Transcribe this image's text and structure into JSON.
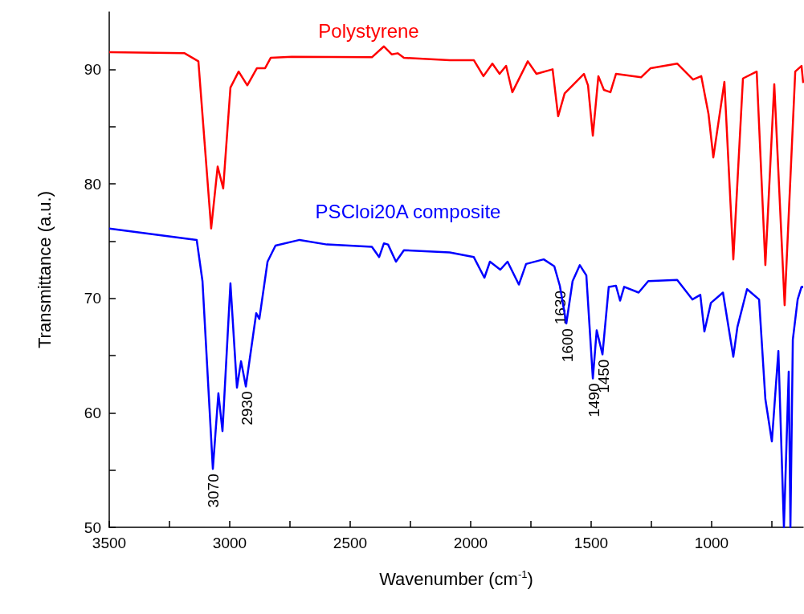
{
  "chart_data": {
    "type": "line",
    "xlabel": "Wavenumber (cm$^{-1}$)",
    "ylabel": "Transmittance (a.u.)",
    "xlim": [
      3500,
      620
    ],
    "ylim": [
      50,
      95
    ],
    "xticks": [
      3500,
      {
        "value": 3250,
        "label": null
      },
      3000,
      {
        "value": 2750,
        "label": null
      },
      2500,
      {
        "value": 2250,
        "label": null
      },
      2000,
      {
        "value": 1750,
        "label": null
      },
      1500,
      {
        "value": 1250,
        "label": null
      },
      1000,
      {
        "value": 750,
        "label": null
      }
    ],
    "yticks": [
      50,
      {
        "value": 55,
        "label": null
      },
      60,
      {
        "value": 65,
        "label": null
      },
      70,
      {
        "value": 75,
        "label": null
      },
      80,
      {
        "value": 85,
        "label": null
      },
      90
    ],
    "marker": "none",
    "series": [
      {
        "name": "Polystyrene",
        "color": "#ff0000",
        "x": [
          3500,
          3187,
          3130,
          3077,
          3050,
          3027,
          2997,
          2963,
          2927,
          2887,
          2853,
          2830,
          2743,
          2410,
          2360,
          2327,
          2303,
          2277,
          2087,
          1987,
          1947,
          1910,
          1880,
          1853,
          1827,
          1763,
          1727,
          1660,
          1637,
          1610,
          1563,
          1530,
          1513,
          1493,
          1470,
          1447,
          1420,
          1397,
          1293,
          1253,
          1143,
          1077,
          1043,
          1013,
          993,
          947,
          910,
          870,
          813,
          777,
          740,
          697,
          653,
          627,
          620
        ],
        "values": [
          91.5,
          91.4,
          90.7,
          76.1,
          81.5,
          79.6,
          88.4,
          89.8,
          88.6,
          90.1,
          90.1,
          91.0,
          91.1,
          91.05,
          92.0,
          91.3,
          91.4,
          91.0,
          90.8,
          90.8,
          89.4,
          90.5,
          89.6,
          90.3,
          88.0,
          90.7,
          89.6,
          90.0,
          85.9,
          87.9,
          88.9,
          89.6,
          88.6,
          84.2,
          89.4,
          88.2,
          88.0,
          89.6,
          89.3,
          90.1,
          90.5,
          89.1,
          89.4,
          86.1,
          82.3,
          88.9,
          73.4,
          89.2,
          89.8,
          72.9,
          88.7,
          69.4,
          89.8,
          90.3,
          88.8
        ]
      },
      {
        "name": "PSCloi20A composite",
        "color": "#0000ff",
        "x": [
          3500,
          3137,
          3113,
          3070,
          3047,
          3030,
          2997,
          2970,
          2953,
          2933,
          2890,
          2877,
          2843,
          2810,
          2710,
          2597,
          2410,
          2380,
          2360,
          2343,
          2310,
          2277,
          2087,
          1987,
          1943,
          1920,
          1877,
          1847,
          1800,
          1770,
          1697,
          1653,
          1630,
          1603,
          1577,
          1547,
          1520,
          1493,
          1477,
          1453,
          1427,
          1397,
          1380,
          1363,
          1303,
          1263,
          1143,
          1080,
          1047,
          1030,
          1003,
          953,
          910,
          893,
          853,
          803,
          777,
          750,
          723,
          700,
          680,
          673,
          663,
          643,
          627,
          620
        ],
        "values": [
          76.1,
          75.1,
          71.5,
          55.1,
          61.7,
          58.4,
          71.3,
          62.2,
          64.5,
          62.3,
          68.7,
          68.2,
          73.2,
          74.6,
          75.1,
          74.7,
          74.5,
          73.6,
          74.8,
          74.7,
          73.2,
          74.2,
          74.0,
          73.6,
          71.8,
          73.2,
          72.5,
          73.2,
          71.2,
          73.0,
          73.4,
          72.8,
          71.1,
          67.8,
          71.5,
          72.9,
          72.0,
          63.0,
          67.2,
          65.1,
          71.0,
          71.1,
          69.8,
          71.0,
          70.5,
          71.5,
          71.6,
          69.9,
          70.3,
          67.1,
          69.6,
          70.5,
          64.9,
          67.5,
          70.8,
          69.9,
          61.2,
          57.5,
          65.4,
          50,
          63.6,
          50,
          66.4,
          69.9,
          71.0,
          71.0
        ]
      }
    ],
    "annotations": [
      {
        "text": "3070",
        "x": 3070,
        "y": 55.1
      },
      {
        "text": "2930",
        "x": 2930,
        "y": 62.3
      },
      {
        "text": "1630",
        "x": 1630,
        "y": 71.1
      },
      {
        "text": "1600",
        "x": 1600,
        "y": 67.8
      },
      {
        "text": "1490",
        "x": 1490,
        "y": 63.0
      },
      {
        "text": "1450",
        "x": 1450,
        "y": 65.1
      }
    ]
  }
}
